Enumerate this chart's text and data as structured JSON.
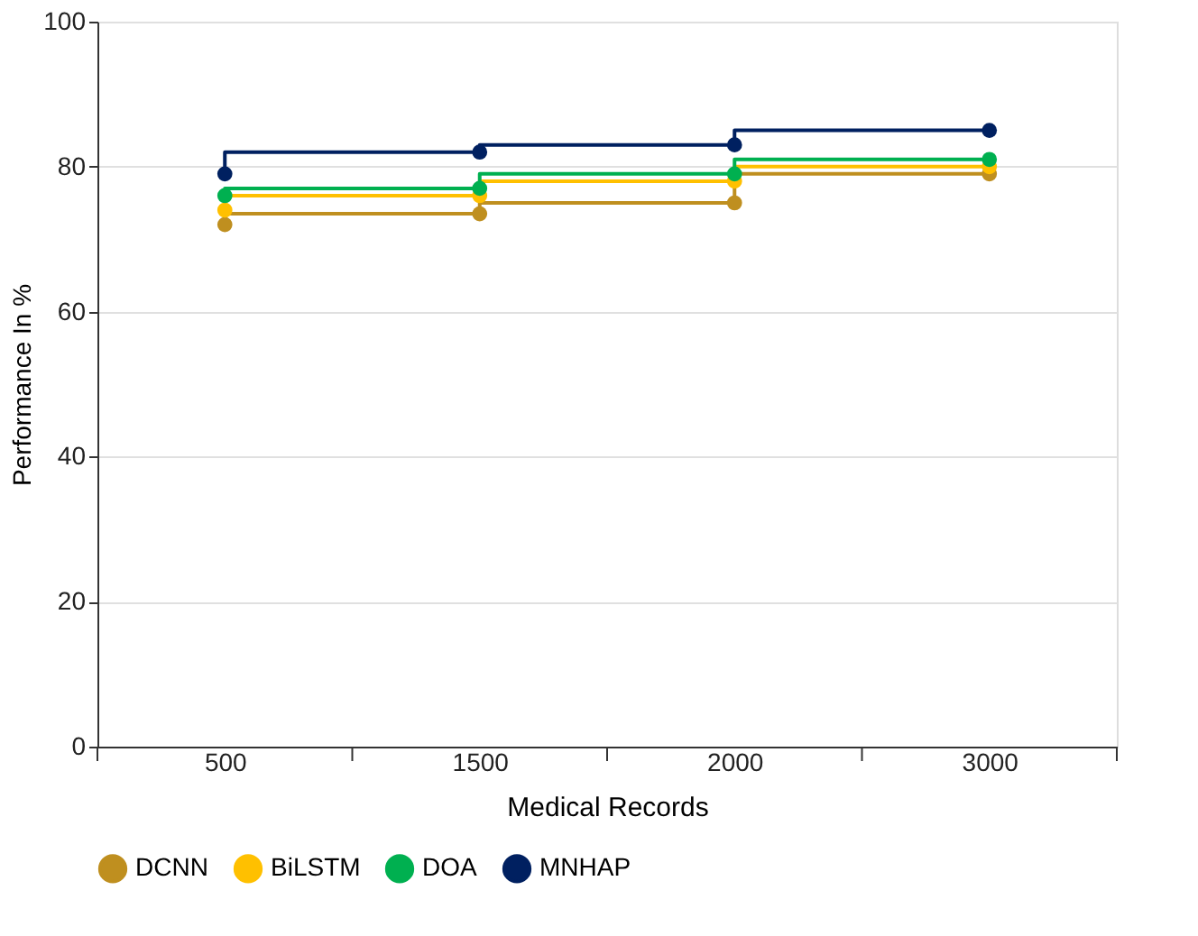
{
  "chart_data": {
    "type": "step",
    "xlabel": "Medical Records",
    "ylabel": "Performance In %",
    "categories": [
      "500",
      "1500",
      "2000",
      "3000"
    ],
    "series": [
      {
        "name": "DCNN",
        "color": "#bf8f1f",
        "values": [
          72,
          73.5,
          75,
          79
        ]
      },
      {
        "name": "BiLSTM",
        "color": "#ffc000",
        "values": [
          74,
          76,
          78,
          80
        ]
      },
      {
        "name": "DOA",
        "color": "#00b050",
        "values": [
          76,
          77,
          79,
          81
        ]
      },
      {
        "name": "MNHAP",
        "color": "#002060",
        "values": [
          79,
          82,
          83,
          85
        ]
      }
    ],
    "ylim": [
      0,
      100
    ],
    "yticks": [
      0,
      20,
      40,
      60,
      80,
      100
    ],
    "grid": "y",
    "legend": "bottom",
    "marker": "circle",
    "line_style": "solid"
  }
}
